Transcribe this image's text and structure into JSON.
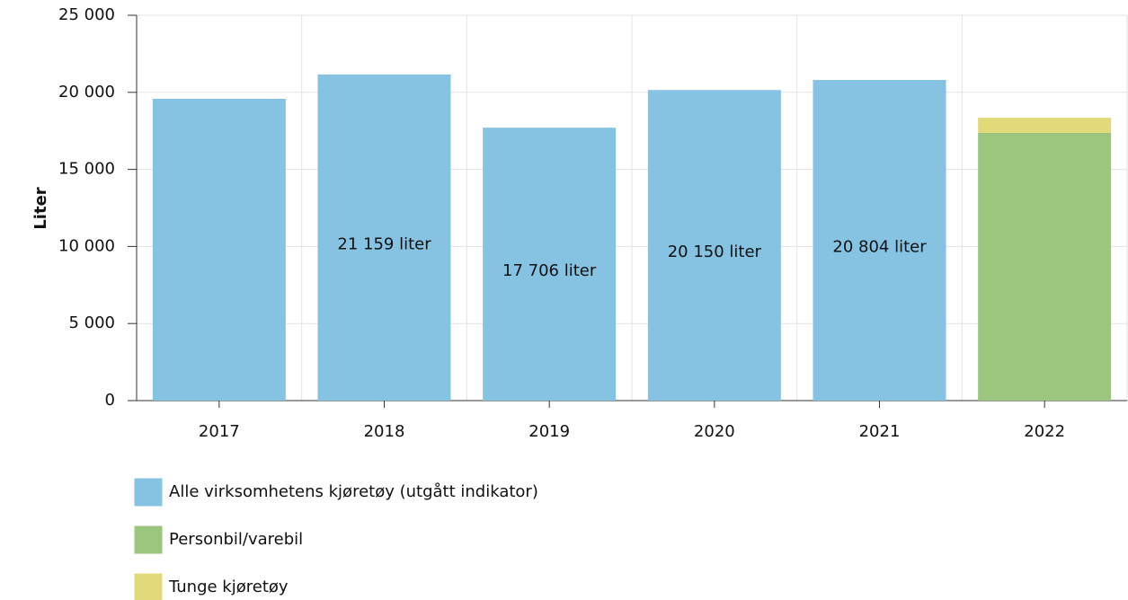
{
  "chart_data": {
    "type": "stacked_bar",
    "y_label": "Liter",
    "categories": [
      "2017",
      "2018",
      "2019",
      "2020",
      "2021",
      "2022"
    ],
    "series": [
      {
        "name": "Alle virksomhetens kjøretøy (utgått indikator)",
        "color": "#86c2e2",
        "values": [
          19580,
          21159,
          17706,
          20150,
          20804,
          null
        ],
        "value_labels": [
          null,
          "21 159 liter",
          "17 706 liter",
          "20 150 liter",
          "20 804 liter",
          null
        ]
      },
      {
        "name": "Personbil/varebil",
        "color": "#9cc57e",
        "values": [
          null,
          null,
          null,
          null,
          null,
          17370
        ]
      },
      {
        "name": "Tunge kjøretøy",
        "color": "#e2da78",
        "values": [
          null,
          null,
          null,
          null,
          null,
          980
        ]
      }
    ],
    "ylim": [
      0,
      25000
    ],
    "yticks": [
      {
        "value": 0,
        "label": "0"
      },
      {
        "value": 5000,
        "label": "5 000"
      },
      {
        "value": 10000,
        "label": "10 000"
      },
      {
        "value": 15000,
        "label": "15 000"
      },
      {
        "value": 20000,
        "label": "20 000"
      },
      {
        "value": 25000,
        "label": "25 000"
      }
    ],
    "grid": true
  }
}
